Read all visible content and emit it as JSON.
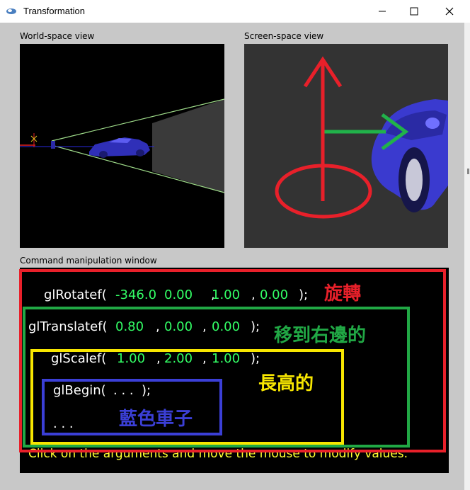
{
  "window": {
    "title": "Transformation"
  },
  "labels": {
    "world": "World-space view",
    "screen": "Screen-space view",
    "cmd": "Command manipulation window"
  },
  "commands": {
    "rotate": {
      "fn": "glRotatef(",
      "args": [
        "-346.0",
        "0.00",
        "1.00",
        "0.00"
      ],
      "sep": ",",
      "end": ");"
    },
    "translate": {
      "fn": "glTranslatef(",
      "args": [
        "0.80",
        "0.00",
        "0.00"
      ],
      "sep": ",",
      "end": ");"
    },
    "scale": {
      "fn": "glScalef(",
      "args": [
        "1.00",
        "2.00",
        "1.00"
      ],
      "sep": ",",
      "end": ");"
    },
    "begin": {
      "fn": "glBegin(",
      "dots": ". . .",
      "end": ");",
      "body": ". . ."
    },
    "help": "Click on the arguments and move the mouse to modify values."
  },
  "annotations": {
    "rotate": "旋轉",
    "translate": "移到右邊的",
    "scale": "長高的",
    "begin": "藍色車子"
  },
  "colors": {
    "red": "#e8202a",
    "green": "#21a845",
    "yellow": "#f7e600",
    "blue": "#3b3fd6",
    "arg": "#33ff66",
    "help": "#ffff33"
  }
}
